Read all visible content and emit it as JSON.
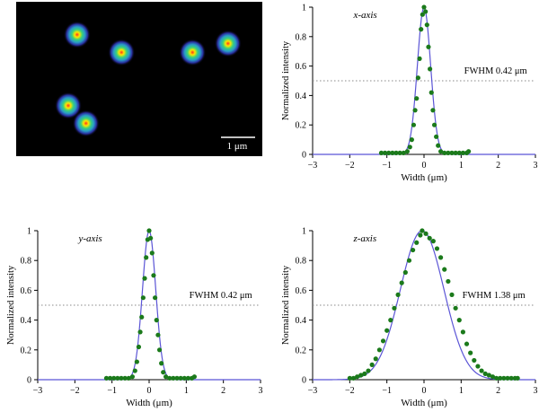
{
  "micrograph": {
    "scale_bar_label": "1 μm",
    "beads": [
      {
        "x_um": -0.7,
        "y_um": 0.5
      },
      {
        "x_um": -0.2,
        "y_um": 0.3
      },
      {
        "x_um": 0.6,
        "y_um": 0.3
      },
      {
        "x_um": 1.0,
        "y_um": 0.4
      },
      {
        "x_um": -0.8,
        "y_um": -0.3
      },
      {
        "x_um": -0.6,
        "y_um": -0.5
      }
    ]
  },
  "chart_data": [
    {
      "type": "scatter",
      "id": "x",
      "panel_label": "x-axis",
      "annotation": "FWHM 0.42 μm",
      "xlabel": "Width (μm)",
      "ylabel": "Normalized intensity",
      "xlim": [
        -3,
        3
      ],
      "ylim": [
        0,
        1
      ],
      "xticks": [
        -3,
        -2,
        -1,
        0,
        1,
        2,
        3
      ],
      "yticks": [
        0,
        0.2,
        0.4,
        0.6,
        0.8,
        1
      ],
      "threshold": 0.5,
      "fwhm": 0.42,
      "center": 0,
      "point_color": "#1b7a1b",
      "curve_color": "#5b55d6",
      "points": [
        [
          -1.15,
          0.01
        ],
        [
          -1.05,
          0.01
        ],
        [
          -0.95,
          0.01
        ],
        [
          -0.85,
          0.01
        ],
        [
          -0.75,
          0.01
        ],
        [
          -0.65,
          0.01
        ],
        [
          -0.55,
          0.01
        ],
        [
          -0.45,
          0.02
        ],
        [
          -0.38,
          0.05
        ],
        [
          -0.33,
          0.1
        ],
        [
          -0.28,
          0.2
        ],
        [
          -0.24,
          0.3
        ],
        [
          -0.2,
          0.38
        ],
        [
          -0.16,
          0.52
        ],
        [
          -0.12,
          0.65
        ],
        [
          -0.08,
          0.85
        ],
        [
          -0.04,
          0.95
        ],
        [
          0.0,
          1.0
        ],
        [
          0.04,
          0.97
        ],
        [
          0.08,
          0.88
        ],
        [
          0.12,
          0.73
        ],
        [
          0.16,
          0.58
        ],
        [
          0.2,
          0.42
        ],
        [
          0.24,
          0.3
        ],
        [
          0.28,
          0.2
        ],
        [
          0.33,
          0.12
        ],
        [
          0.38,
          0.06
        ],
        [
          0.45,
          0.02
        ],
        [
          0.55,
          0.01
        ],
        [
          0.65,
          0.01
        ],
        [
          0.75,
          0.01
        ],
        [
          0.85,
          0.01
        ],
        [
          0.95,
          0.01
        ],
        [
          1.05,
          0.01
        ],
        [
          1.15,
          0.01
        ],
        [
          1.2,
          0.02
        ]
      ]
    },
    {
      "type": "scatter",
      "id": "y",
      "panel_label": "y-axis",
      "annotation": "FWHM 0.42 μm",
      "xlabel": "Width (μm)",
      "ylabel": "Normalized intensity",
      "xlim": [
        -3,
        3
      ],
      "ylim": [
        0,
        1
      ],
      "xticks": [
        -3,
        -2,
        -1,
        0,
        1,
        2,
        3
      ],
      "yticks": [
        0,
        0.2,
        0.4,
        0.6,
        0.8,
        1
      ],
      "threshold": 0.5,
      "fwhm": 0.42,
      "center": 0,
      "point_color": "#1b7a1b",
      "curve_color": "#5b55d6",
      "points": [
        [
          -1.15,
          0.01
        ],
        [
          -1.05,
          0.01
        ],
        [
          -0.95,
          0.01
        ],
        [
          -0.85,
          0.01
        ],
        [
          -0.75,
          0.01
        ],
        [
          -0.65,
          0.01
        ],
        [
          -0.55,
          0.01
        ],
        [
          -0.45,
          0.02
        ],
        [
          -0.38,
          0.06
        ],
        [
          -0.33,
          0.12
        ],
        [
          -0.28,
          0.22
        ],
        [
          -0.24,
          0.32
        ],
        [
          -0.2,
          0.42
        ],
        [
          -0.16,
          0.55
        ],
        [
          -0.12,
          0.68
        ],
        [
          -0.08,
          0.82
        ],
        [
          -0.04,
          0.94
        ],
        [
          0.0,
          1.0
        ],
        [
          0.04,
          0.95
        ],
        [
          0.08,
          0.85
        ],
        [
          0.12,
          0.7
        ],
        [
          0.16,
          0.55
        ],
        [
          0.2,
          0.4
        ],
        [
          0.24,
          0.3
        ],
        [
          0.28,
          0.2
        ],
        [
          0.33,
          0.11
        ],
        [
          0.38,
          0.05
        ],
        [
          0.45,
          0.02
        ],
        [
          0.55,
          0.01
        ],
        [
          0.65,
          0.01
        ],
        [
          0.75,
          0.01
        ],
        [
          0.85,
          0.01
        ],
        [
          0.95,
          0.01
        ],
        [
          1.05,
          0.01
        ],
        [
          1.15,
          0.01
        ],
        [
          1.22,
          0.02
        ]
      ]
    },
    {
      "type": "scatter",
      "id": "z",
      "panel_label": "z-axis",
      "annotation": "FWHM 1.38 μm",
      "xlabel": "Width (μm)",
      "ylabel": "Normalized intensity",
      "xlim": [
        -3,
        3
      ],
      "ylim": [
        0,
        1
      ],
      "xticks": [
        -3,
        -2,
        -1,
        0,
        1,
        2,
        3
      ],
      "yticks": [
        0,
        0.2,
        0.4,
        0.6,
        0.8,
        1
      ],
      "threshold": 0.5,
      "fwhm": 1.38,
      "center": -0.05,
      "point_color": "#1b7a1b",
      "curve_color": "#5b55d6",
      "points": [
        [
          -2.0,
          0.01
        ],
        [
          -1.9,
          0.01
        ],
        [
          -1.8,
          0.02
        ],
        [
          -1.7,
          0.03
        ],
        [
          -1.6,
          0.04
        ],
        [
          -1.5,
          0.06
        ],
        [
          -1.4,
          0.1
        ],
        [
          -1.3,
          0.14
        ],
        [
          -1.2,
          0.2
        ],
        [
          -1.1,
          0.26
        ],
        [
          -1.0,
          0.33
        ],
        [
          -0.9,
          0.4
        ],
        [
          -0.8,
          0.48
        ],
        [
          -0.7,
          0.57
        ],
        [
          -0.6,
          0.65
        ],
        [
          -0.5,
          0.72
        ],
        [
          -0.4,
          0.8
        ],
        [
          -0.3,
          0.87
        ],
        [
          -0.2,
          0.92
        ],
        [
          -0.1,
          0.97
        ],
        [
          -0.05,
          1.0
        ],
        [
          0.05,
          0.98
        ],
        [
          0.15,
          0.95
        ],
        [
          0.25,
          0.93
        ],
        [
          0.35,
          0.88
        ],
        [
          0.45,
          0.82
        ],
        [
          0.55,
          0.74
        ],
        [
          0.65,
          0.66
        ],
        [
          0.75,
          0.57
        ],
        [
          0.85,
          0.48
        ],
        [
          0.95,
          0.4
        ],
        [
          1.05,
          0.32
        ],
        [
          1.15,
          0.24
        ],
        [
          1.25,
          0.18
        ],
        [
          1.35,
          0.13
        ],
        [
          1.45,
          0.09
        ],
        [
          1.55,
          0.06
        ],
        [
          1.65,
          0.04
        ],
        [
          1.75,
          0.03
        ],
        [
          1.85,
          0.02
        ],
        [
          1.95,
          0.01
        ],
        [
          2.05,
          0.01
        ],
        [
          2.15,
          0.01
        ],
        [
          2.25,
          0.01
        ],
        [
          2.35,
          0.01
        ],
        [
          2.45,
          0.01
        ],
        [
          2.52,
          0.01
        ]
      ]
    }
  ]
}
